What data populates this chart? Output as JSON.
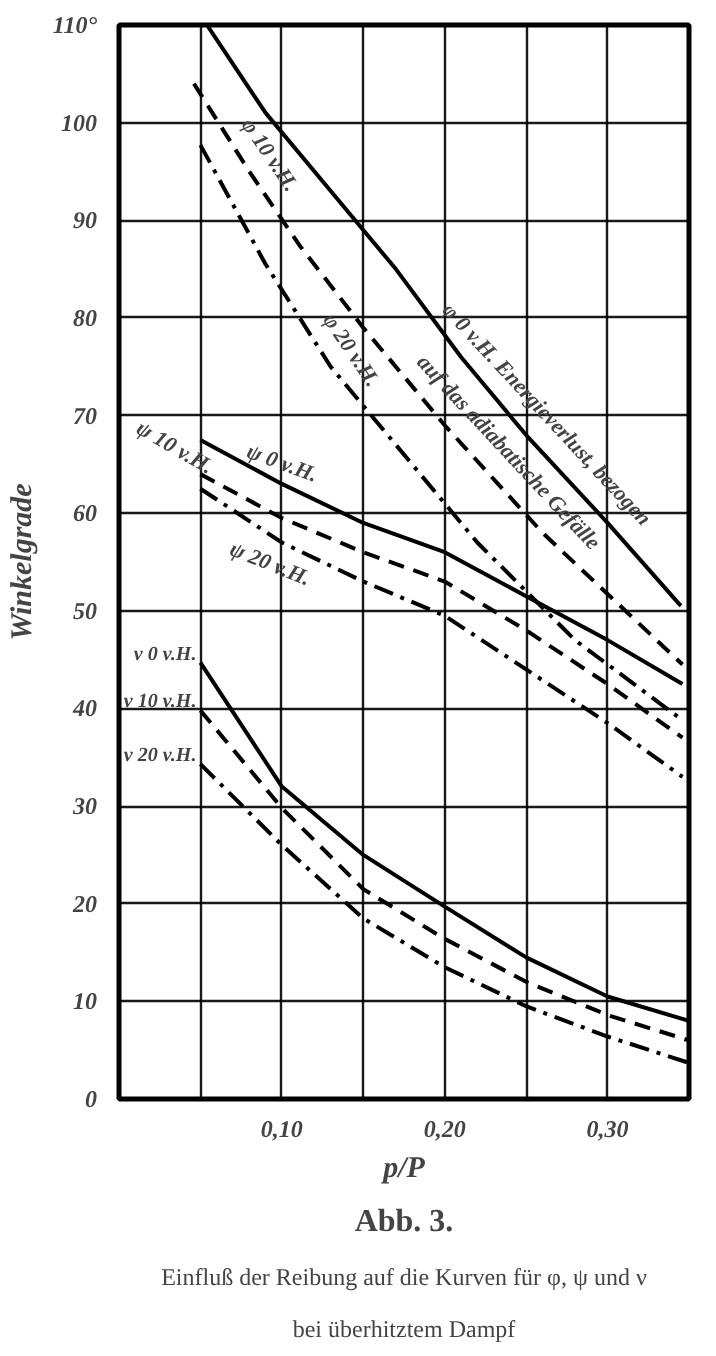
{
  "chart_data": {
    "type": "line",
    "title": "Abb. 3.",
    "subtitle": "Einfluß der Reibung auf die Kurven für φ, ψ und ν bei überhitztem Dampf",
    "xlabel": "p/P",
    "ylabel": "Winkelgrade",
    "xlim": [
      0,
      0.35
    ],
    "ylim": [
      0,
      110
    ],
    "xticks": [
      {
        "value": 0.05,
        "label": null
      },
      {
        "value": 0.1,
        "label": "0,10"
      },
      {
        "value": 0.15,
        "label": null
      },
      {
        "value": 0.2,
        "label": "0,20"
      },
      {
        "value": 0.25,
        "label": null
      },
      {
        "value": 0.3,
        "label": "0,30"
      }
    ],
    "yticks": [
      0,
      10,
      20,
      30,
      40,
      50,
      60,
      70,
      80,
      90,
      100,
      {
        "value": 110,
        "label": "110°"
      }
    ],
    "grid": true,
    "series": [
      {
        "color": "#000000",
        "line_style": "solid",
        "x": [
          0.054,
          0.09,
          0.13,
          0.17,
          0.21,
          0.25,
          0.3,
          0.345
        ],
        "values": [
          110,
          101,
          93,
          85,
          76,
          68,
          59,
          50.5
        ]
      },
      {
        "color": "#000000",
        "line_style": "dashed",
        "x": [
          0.046,
          0.08,
          0.111,
          0.15,
          0.2,
          0.26,
          0.346
        ],
        "values": [
          104,
          95,
          87.4,
          79,
          69,
          58,
          44.5
        ]
      },
      {
        "color": "#000000",
        "line_style": "dashdot",
        "x": [
          0.05,
          0.09,
          0.13,
          0.17,
          0.22,
          0.28,
          0.346
        ],
        "values": [
          97.7,
          85.5,
          75,
          67,
          57,
          47,
          38.8
        ]
      },
      {
        "color": "#000000",
        "line_style": "solid",
        "x": [
          0.05,
          0.1,
          0.15,
          0.2,
          0.25,
          0.3,
          0.346
        ],
        "values": [
          67.5,
          63,
          59,
          56,
          51.5,
          47,
          42.5
        ]
      },
      {
        "color": "#000000",
        "line_style": "dashed",
        "x": [
          0.05,
          0.1,
          0.15,
          0.2,
          0.25,
          0.3,
          0.346
        ],
        "values": [
          64,
          59.5,
          56,
          53,
          48,
          42.5,
          37
        ]
      },
      {
        "color": "#000000",
        "line_style": "dashdot",
        "x": [
          0.05,
          0.1,
          0.15,
          0.2,
          0.25,
          0.3,
          0.346
        ],
        "values": [
          62.5,
          57,
          53,
          49.5,
          44,
          38.5,
          33
        ]
      },
      {
        "color": "#000000",
        "line_style": "solid",
        "x": [
          0.05,
          0.1,
          0.15,
          0.2,
          0.25,
          0.3,
          0.35
        ],
        "values": [
          44.7,
          32,
          25,
          19.7,
          14.5,
          10.5,
          8
        ]
      },
      {
        "color": "#000000",
        "line_style": "dashed",
        "x": [
          0.05,
          0.1,
          0.15,
          0.2,
          0.25,
          0.3,
          0.35
        ],
        "values": [
          39.8,
          29.8,
          21.5,
          16.4,
          12,
          8.6,
          6
        ]
      },
      {
        "color": "#000000",
        "line_style": "dashdot",
        "x": [
          0.05,
          0.1,
          0.15,
          0.2,
          0.25,
          0.3,
          0.35
        ],
        "values": [
          34.3,
          26,
          18.5,
          13.5,
          9.5,
          6.4,
          3.7
        ]
      }
    ],
    "annotations": [
      {
        "text": "φ 0 v.H. Energieverlust, bezogen",
        "x": 0.25,
        "y": 68
      },
      {
        "text": "auf das adiabatische Gefälle",
        "x": 0.25,
        "y": 68
      },
      {
        "text": "φ 10 v.H.",
        "x": 0.08,
        "y": 95
      },
      {
        "text": "φ 20 v.H.",
        "x": 0.13,
        "y": 75
      },
      {
        "text": "ψ 0 v.H.",
        "x": 0.1,
        "y": 63
      },
      {
        "text": "ψ 10 v.H.",
        "x": 0.05,
        "y": 64
      },
      {
        "text": "ψ 20 v.H.",
        "x": 0.1,
        "y": 57
      },
      {
        "text": "ν 0 v.H.",
        "x": 0.05,
        "y": 44.7
      },
      {
        "text": "ν 10 v.H.",
        "x": 0.05,
        "y": 39.8
      },
      {
        "text": "ν 20 v.H.",
        "x": 0.05,
        "y": 34.3
      }
    ]
  }
}
